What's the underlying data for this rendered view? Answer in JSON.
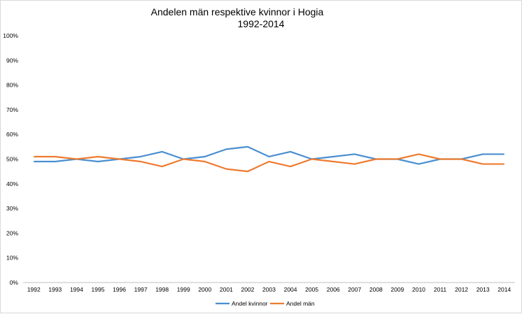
{
  "chart_data": {
    "type": "line",
    "title": [
      "Andelen män respektive kvinnor i Hogia",
      "1992-2014"
    ],
    "xlabel": "",
    "ylabel": "",
    "categories": [
      "1992",
      "1993",
      "1994",
      "1995",
      "1996",
      "1997",
      "1998",
      "1999",
      "2000",
      "2001",
      "2002",
      "2003",
      "2004",
      "2005",
      "2006",
      "2007",
      "2008",
      "2009",
      "2010",
      "2011",
      "2012",
      "2013",
      "2014"
    ],
    "yticks": [
      "0%",
      "10%",
      "20%",
      "30%",
      "40%",
      "50%",
      "60%",
      "70%",
      "80%",
      "90%",
      "100%"
    ],
    "ylim": [
      0,
      100
    ],
    "grid": false,
    "legend_position": "bottom",
    "series": [
      {
        "name": "Andel kvinnor",
        "color": "#4a8fd0",
        "values": [
          49,
          49,
          50,
          49,
          50,
          51,
          53,
          50,
          51,
          54,
          55,
          51,
          53,
          50,
          51,
          52,
          50,
          50,
          48,
          50,
          50,
          52,
          52
        ]
      },
      {
        "name": "Andel män",
        "color": "#ee7b2f",
        "values": [
          51,
          51,
          50,
          51,
          50,
          49,
          47,
          50,
          49,
          46,
          45,
          49,
          47,
          50,
          49,
          48,
          50,
          50,
          52,
          50,
          50,
          48,
          48
        ]
      }
    ]
  }
}
